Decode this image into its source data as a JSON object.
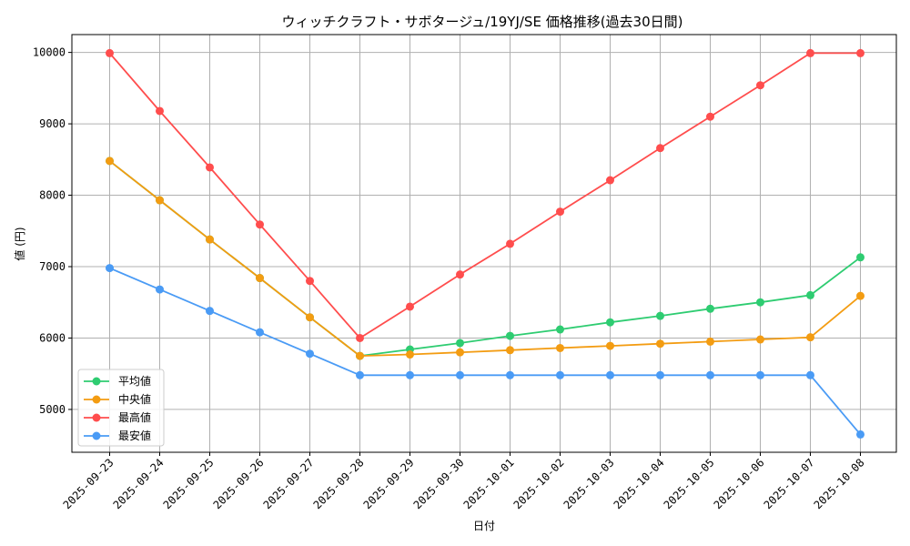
{
  "chart_data": {
    "type": "line",
    "title": "ウィッチクラフト・サボタージュ/19YJ/SE 価格推移(過去30日間)",
    "xlabel": "日付",
    "ylabel": "値 (円)",
    "categories": [
      "2025-09-23",
      "2025-09-24",
      "2025-09-25",
      "2025-09-26",
      "2025-09-27",
      "2025-09-28",
      "2025-09-29",
      "2025-09-30",
      "2025-10-01",
      "2025-10-02",
      "2025-10-03",
      "2025-10-04",
      "2025-10-05",
      "2025-10-06",
      "2025-10-07",
      "2025-10-08"
    ],
    "ylim": [
      4400,
      10250
    ],
    "yticks": [
      5000,
      6000,
      7000,
      8000,
      9000,
      10000
    ],
    "grid": true,
    "legend_position": "lower-left",
    "series": [
      {
        "name": "平均値",
        "color": "#2ecc71",
        "values": [
          8480,
          7930,
          7380,
          6840,
          6290,
          5750,
          5840,
          5930,
          6030,
          6120,
          6220,
          6310,
          6410,
          6500,
          6600,
          7130
        ]
      },
      {
        "name": "中央値",
        "color": "#f39c12",
        "values": [
          8480,
          7930,
          7380,
          6840,
          6290,
          5750,
          5770,
          5800,
          5830,
          5860,
          5890,
          5920,
          5950,
          5980,
          6010,
          6590
        ]
      },
      {
        "name": "最高値",
        "color": "#ff4d4d",
        "values": [
          9990,
          9180,
          8390,
          7590,
          6800,
          6000,
          6440,
          6890,
          7320,
          7770,
          8210,
          8660,
          9100,
          9540,
          9990,
          9990
        ]
      },
      {
        "name": "最安値",
        "color": "#4a9bf5",
        "values": [
          6980,
          6680,
          6380,
          6080,
          5780,
          5480,
          5480,
          5480,
          5480,
          5480,
          5480,
          5480,
          5480,
          5480,
          5480,
          4650
        ]
      }
    ]
  }
}
